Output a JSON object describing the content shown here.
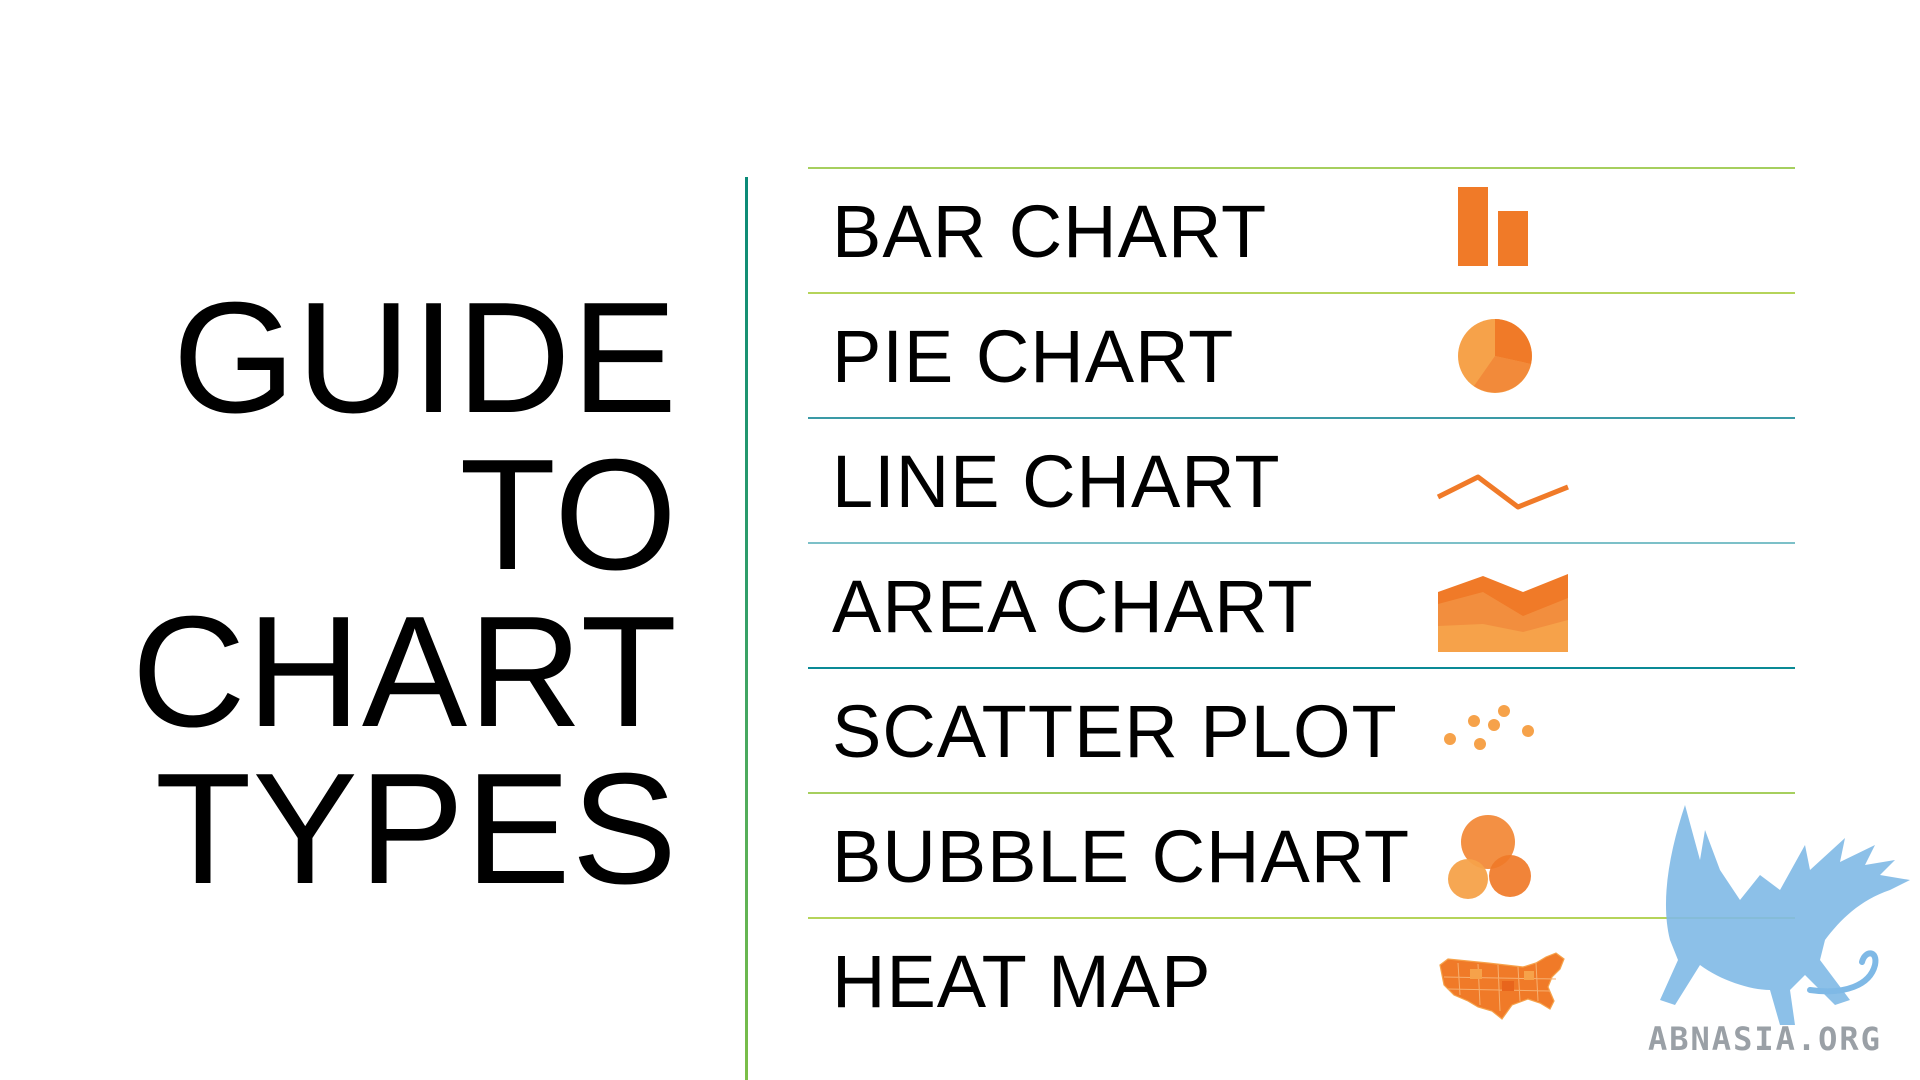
{
  "title": {
    "lines": [
      "GUIDE",
      "TO",
      "CHART",
      "TYPES"
    ]
  },
  "rows": [
    {
      "label": "BAR CHART",
      "icon": "bar-chart-icon"
    },
    {
      "label": "PIE CHART",
      "icon": "pie-chart-icon"
    },
    {
      "label": "LINE CHART",
      "icon": "line-chart-icon"
    },
    {
      "label": "AREA CHART",
      "icon": "area-chart-icon"
    },
    {
      "label": "SCATTER PLOT",
      "icon": "scatter-plot-icon"
    },
    {
      "label": "BUBBLE CHART",
      "icon": "bubble-chart-icon"
    },
    {
      "label": "HEAT MAP",
      "icon": "heat-map-icon"
    }
  ],
  "watermark": {
    "text": "ABNASIA.ORG",
    "icon": "griffin-logo-icon"
  },
  "colors": {
    "icon_orange": "#f07a28",
    "icon_orange_light": "#f6a24a",
    "divider_top": "#0a8a78",
    "divider_bottom": "#7cbf48",
    "row_line_green": "#9ccc5a",
    "row_line_teal": "#3a9aa6",
    "watermark_blue": "#7fb9e6",
    "watermark_text": "#9aa0a6"
  }
}
